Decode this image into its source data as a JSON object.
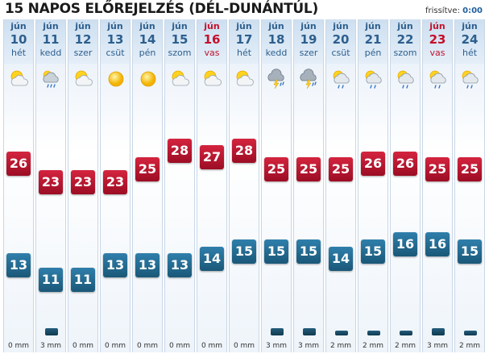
{
  "header": {
    "title": "15 NAPOS ELŐREJELZÉS (DÉL-DUNÁNTÚL)",
    "updated_label": "frissítve:",
    "updated_value": "0:00"
  },
  "colors": {
    "max_temp": "#c41a34",
    "min_temp": "#266d94",
    "weekend_text": "#c4112b",
    "weekday_text": "#2d5f8e"
  },
  "days": [
    {
      "month": "jún",
      "day": "10",
      "name": "hét",
      "weekend": false,
      "icon": "partly-sunny-icon",
      "max": 26,
      "min": 13,
      "precip": "0 mm",
      "precip_mm": 0
    },
    {
      "month": "jún",
      "day": "11",
      "name": "kedd",
      "weekend": false,
      "icon": "rain-cloud-icon",
      "max": 23,
      "min": 11,
      "precip": "3 mm",
      "precip_mm": 3
    },
    {
      "month": "jún",
      "day": "12",
      "name": "szer",
      "weekend": false,
      "icon": "partly-sunny-icon",
      "max": 23,
      "min": 11,
      "precip": "0 mm",
      "precip_mm": 0
    },
    {
      "month": "jún",
      "day": "13",
      "name": "csüt",
      "weekend": false,
      "icon": "sun-icon",
      "max": 23,
      "min": 13,
      "precip": "0 mm",
      "precip_mm": 0
    },
    {
      "month": "jún",
      "day": "14",
      "name": "pén",
      "weekend": false,
      "icon": "sun-icon",
      "max": 25,
      "min": 13,
      "precip": "0 mm",
      "precip_mm": 0
    },
    {
      "month": "jún",
      "day": "15",
      "name": "szom",
      "weekend": false,
      "icon": "partly-sunny-icon",
      "max": 28,
      "min": 13,
      "precip": "0 mm",
      "precip_mm": 0
    },
    {
      "month": "jún",
      "day": "16",
      "name": "vas",
      "weekend": true,
      "icon": "partly-sunny-icon",
      "max": 27,
      "min": 14,
      "precip": "0 mm",
      "precip_mm": 0
    },
    {
      "month": "jún",
      "day": "17",
      "name": "hét",
      "weekend": false,
      "icon": "partly-sunny-icon",
      "max": 28,
      "min": 15,
      "precip": "0 mm",
      "precip_mm": 0
    },
    {
      "month": "jún",
      "day": "18",
      "name": "kedd",
      "weekend": false,
      "icon": "thunderstorm-icon",
      "max": 25,
      "min": 15,
      "precip": "3 mm",
      "precip_mm": 3
    },
    {
      "month": "jún",
      "day": "19",
      "name": "szer",
      "weekend": false,
      "icon": "thunderstorm-icon",
      "max": 25,
      "min": 15,
      "precip": "3 mm",
      "precip_mm": 3
    },
    {
      "month": "jún",
      "day": "20",
      "name": "csüt",
      "weekend": false,
      "icon": "sun-rain-icon",
      "max": 25,
      "min": 14,
      "precip": "2 mm",
      "precip_mm": 2
    },
    {
      "month": "jún",
      "day": "21",
      "name": "pén",
      "weekend": false,
      "icon": "sun-rain-icon",
      "max": 26,
      "min": 15,
      "precip": "2 mm",
      "precip_mm": 2
    },
    {
      "month": "jún",
      "day": "22",
      "name": "szom",
      "weekend": false,
      "icon": "sun-rain-icon",
      "max": 26,
      "min": 16,
      "precip": "2 mm",
      "precip_mm": 2
    },
    {
      "month": "jún",
      "day": "23",
      "name": "vas",
      "weekend": true,
      "icon": "sun-rain-icon",
      "max": 25,
      "min": 16,
      "precip": "3 mm",
      "precip_mm": 3
    },
    {
      "month": "jún",
      "day": "24",
      "name": "hét",
      "weekend": false,
      "icon": "sun-rain-icon",
      "max": 25,
      "min": 15,
      "precip": "2 mm",
      "precip_mm": 2
    }
  ]
}
